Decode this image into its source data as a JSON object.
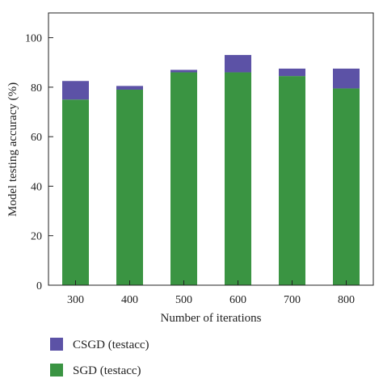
{
  "chart_data": {
    "type": "bar",
    "stacked": true,
    "categories": [
      "300",
      "400",
      "500",
      "600",
      "700",
      "800"
    ],
    "series": [
      {
        "name": "SGD (testacc)",
        "color": "#3a9442",
        "values": [
          75.0,
          79.0,
          86.0,
          86.0,
          84.5,
          79.5
        ]
      },
      {
        "name": "CSGD (testacc)",
        "color": "#5c52a6",
        "values": [
          7.5,
          1.5,
          1.0,
          7.0,
          3.0,
          8.0
        ]
      }
    ],
    "title": "",
    "xlabel": "Number of iterations",
    "ylabel": "Model testing accuracy (%)",
    "ylim": [
      0,
      110
    ],
    "yticks": [
      "0",
      "20",
      "40",
      "60",
      "80",
      "100"
    ],
    "grid": false,
    "legend_position": "bottom-left"
  }
}
